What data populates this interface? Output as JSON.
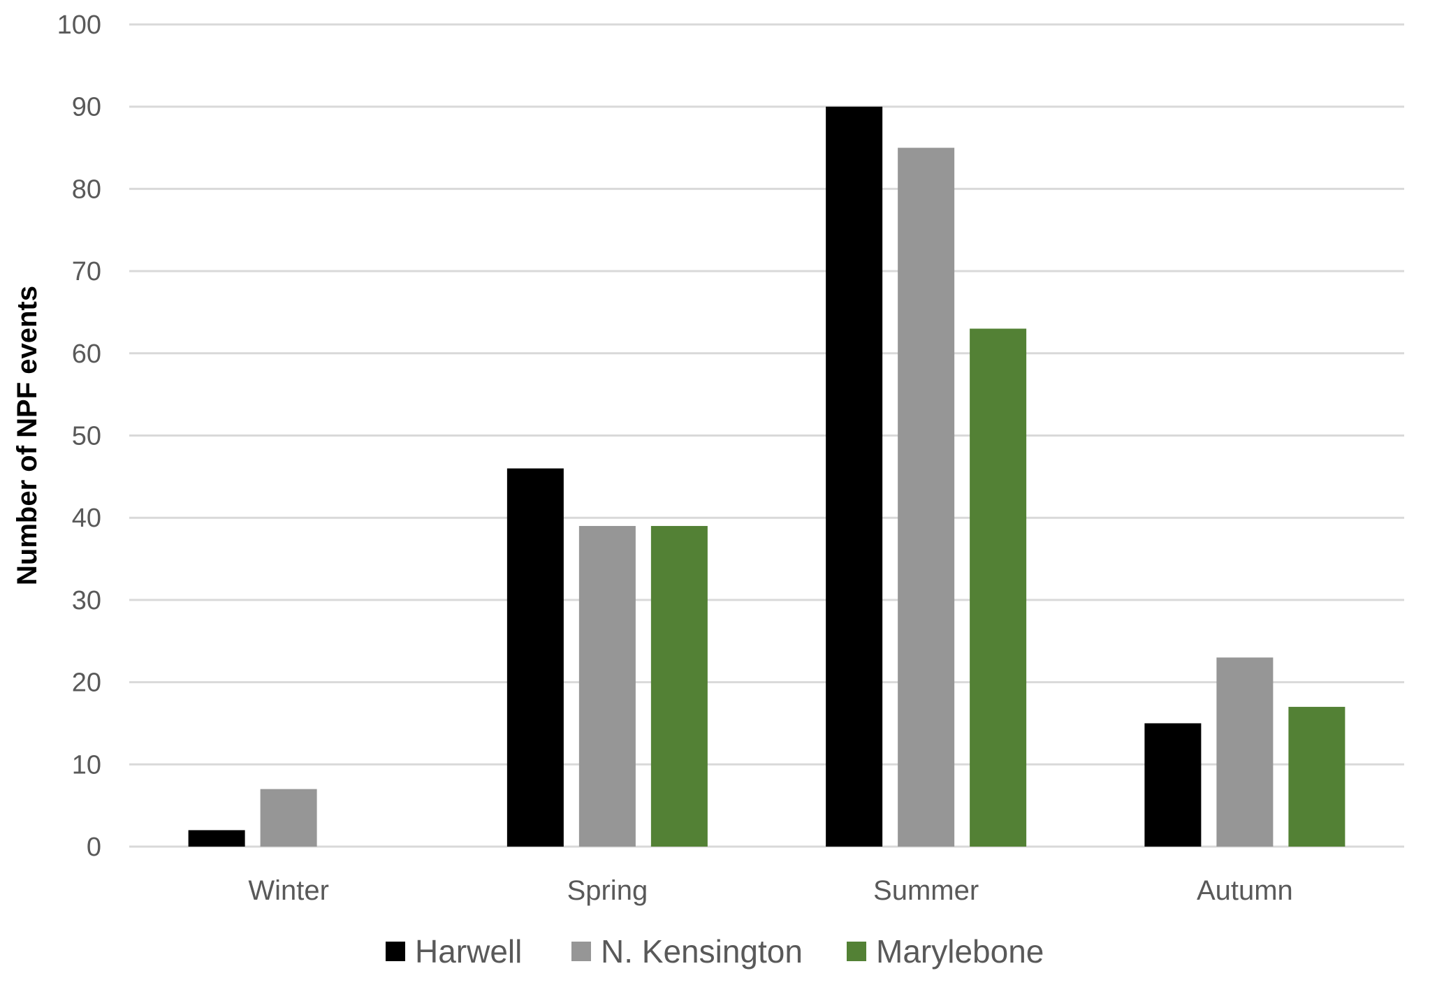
{
  "chart_data": {
    "type": "bar",
    "ylabel": "Number of NPF events",
    "xlabel": "",
    "ylim": [
      0,
      100
    ],
    "ytick_step": 10,
    "grid": true,
    "legend_position": "bottom",
    "categories": [
      "Winter",
      "Spring",
      "Summer",
      "Autumn"
    ],
    "series": [
      {
        "name": "Harwell",
        "color": "#000000",
        "values": [
          2,
          46,
          90,
          15
        ]
      },
      {
        "name": "N. Kensington",
        "color": "#969696",
        "values": [
          7,
          39,
          85,
          23
        ]
      },
      {
        "name": "Marylebone",
        "color": "#538135",
        "values": [
          0,
          39,
          63,
          17
        ]
      }
    ]
  }
}
